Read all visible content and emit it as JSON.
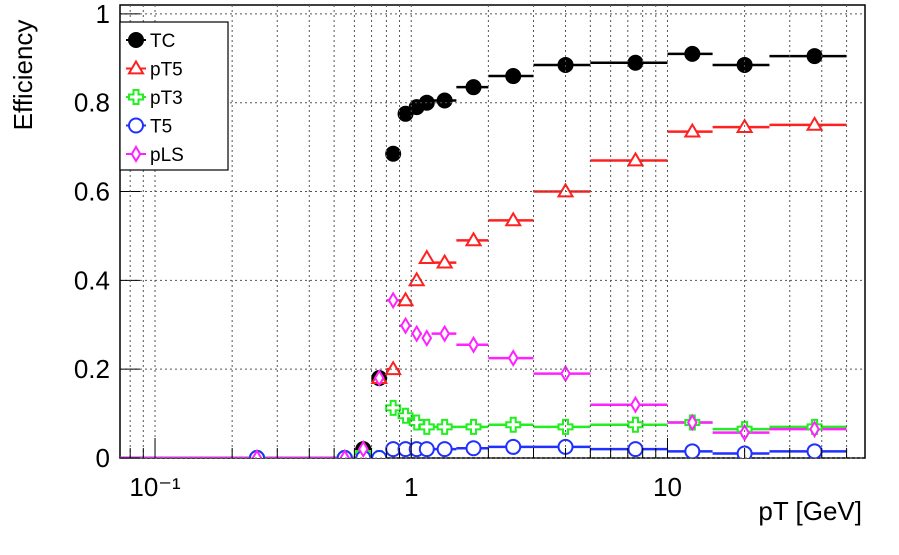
{
  "chart_data": {
    "type": "scatter",
    "y_label": "Efficiency",
    "x_label": "pT [GeV]",
    "log_x": true,
    "grid": true,
    "legend": "upper left",
    "xlim": [
      0.073,
      59
    ],
    "ylim": [
      0,
      1.02
    ],
    "xticks": [
      {
        "value": 0.1,
        "label": "10⁻¹"
      },
      1,
      10
    ],
    "xminorticks": [
      0.08,
      0.09,
      0.2,
      0.3,
      0.4,
      0.5,
      0.6,
      0.7,
      0.8,
      0.9,
      2,
      3,
      4,
      5,
      6,
      7,
      8,
      9,
      20,
      30,
      40,
      50
    ],
    "yticks": [
      0,
      0.2,
      0.4,
      0.6,
      0.8,
      1
    ],
    "bins": [
      0,
      0.5,
      0.6,
      0.7,
      0.8,
      0.9,
      1.0,
      1.1,
      1.2,
      1.5,
      2,
      3,
      5,
      10,
      15,
      25,
      50
    ],
    "x": [
      0.25,
      0.55,
      0.65,
      0.75,
      0.85,
      0.95,
      1.05,
      1.15,
      1.35,
      1.75,
      2.5,
      4,
      7.5,
      12.5,
      20,
      37.5
    ],
    "series": [
      {
        "name": "TC",
        "color": "#000000",
        "marker": "filled-circle",
        "values": [
          0,
          0,
          0.02,
          0.18,
          0.685,
          0.775,
          0.79,
          0.8,
          0.805,
          0.835,
          0.86,
          0.885,
          0.89,
          0.91,
          0.885,
          0.905
        ]
      },
      {
        "name": "pT5",
        "color": "#ff2020",
        "marker": "triangle",
        "values": [
          0,
          0,
          0.02,
          0.18,
          0.2,
          0.355,
          0.4,
          0.45,
          0.44,
          0.49,
          0.535,
          0.6,
          0.67,
          0.735,
          0.745,
          0.75
        ]
      },
      {
        "name": "pT3",
        "color": "#22ee22",
        "marker": "cross",
        "values": [
          0,
          0,
          0.01,
          0,
          0.113,
          0.095,
          0.08,
          0.07,
          0.07,
          0.07,
          0.075,
          0.07,
          0.075,
          0.08,
          0.065,
          0.07
        ]
      },
      {
        "name": "T5",
        "color": "#2030ff",
        "marker": "circle",
        "values": [
          0,
          0,
          0,
          0,
          0.02,
          0.02,
          0.02,
          0.02,
          0.02,
          0.022,
          0.025,
          0.025,
          0.02,
          0.015,
          0.01,
          0.015
        ]
      },
      {
        "name": "pLS",
        "color": "#ff22ff",
        "marker": "diamond",
        "values": [
          0,
          0,
          0.02,
          0.18,
          0.355,
          0.298,
          0.28,
          0.27,
          0.28,
          0.255,
          0.225,
          0.19,
          0.12,
          0.08,
          0.057,
          0.065
        ]
      }
    ]
  }
}
